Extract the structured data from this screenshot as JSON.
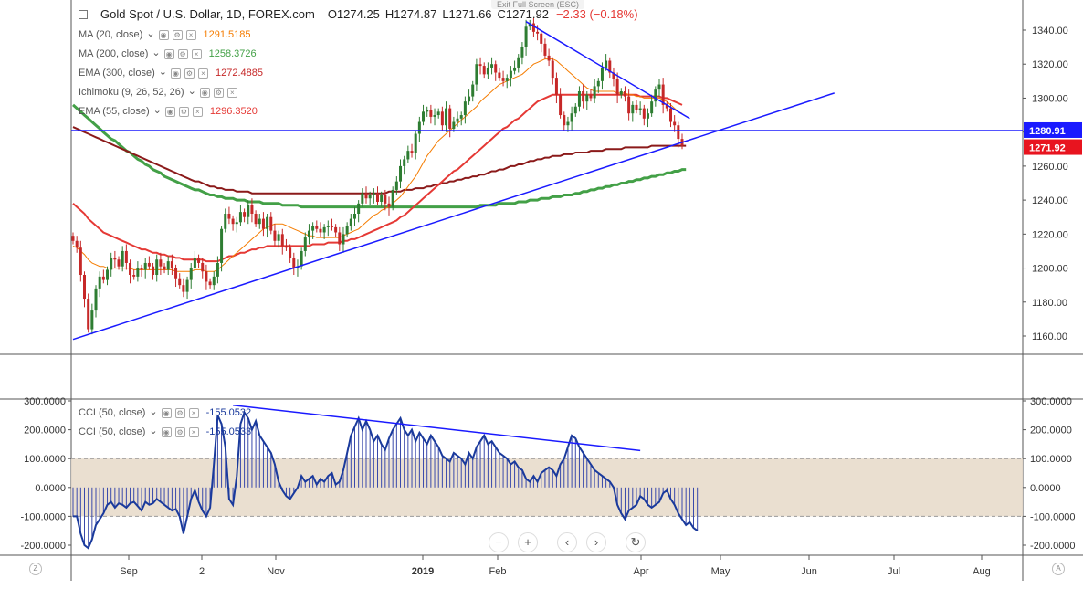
{
  "header": {
    "symbol": "Gold Spot / U.S. Dollar, 1D, FOREX.com",
    "open": "O1274.25",
    "high": "H1274.87",
    "low": "L1271.66",
    "close": "C1271.92",
    "change": "−2.33 (−0.18%)",
    "exit_fullscreen": "Exit Full Screen (ESC)"
  },
  "legend_main": [
    {
      "label": "MA (20, close)",
      "value": "1291.5185",
      "color": "#f57c00"
    },
    {
      "label": "MA (200, close)",
      "value": "1258.3726",
      "color": "#43a047"
    },
    {
      "label": "EMA (300, close)",
      "value": "1272.4885",
      "color": "#c62828"
    },
    {
      "label": "Ichimoku (9, 26, 52, 26)",
      "value": "",
      "color": "#b0b8c8"
    },
    {
      "label": "EMA (55, close)",
      "value": "1296.3520",
      "color": "#e53935"
    }
  ],
  "legend_cci": [
    {
      "label": "CCI (50, close)",
      "value": "-155.0532",
      "color": "#1a3a9c"
    },
    {
      "label": "CCI (50, close)",
      "value": "-155.0533",
      "color": "#1a3a9c"
    }
  ],
  "price_badges": {
    "hline": "1280.91",
    "last": "1271.92",
    "hline_color": "#1a1aff",
    "last_color": "#e8141f"
  },
  "chart_data": {
    "type": "candlestick",
    "price_axis": {
      "ticks": [
        1160,
        1180,
        1200,
        1220,
        1240,
        1260,
        1280,
        1300,
        1320,
        1340
      ],
      "ylim": [
        1150,
        1350
      ]
    },
    "cci_axis": {
      "ticks": [
        -200,
        -100,
        0,
        100,
        200,
        300
      ],
      "ylim": [
        -230,
        310
      ],
      "band": [
        -100,
        100
      ]
    },
    "x_labels": [
      "Sep",
      "2",
      "Nov",
      "2019",
      "Feb",
      "Apr",
      "May",
      "Jun",
      "Jul",
      "Aug"
    ],
    "close": [
      1216,
      1212,
      1196,
      1182,
      1164,
      1175,
      1188,
      1195,
      1193,
      1199,
      1206,
      1205,
      1201,
      1210,
      1203,
      1196,
      1195,
      1200,
      1199,
      1203,
      1201,
      1196,
      1205,
      1201,
      1199,
      1204,
      1200,
      1194,
      1190,
      1186,
      1193,
      1200,
      1206,
      1203,
      1198,
      1192,
      1190,
      1195,
      1203,
      1223,
      1232,
      1229,
      1226,
      1227,
      1233,
      1230,
      1237,
      1232,
      1226,
      1229,
      1223,
      1230,
      1222,
      1216,
      1220,
      1213,
      1212,
      1206,
      1200,
      1201,
      1210,
      1218,
      1222,
      1225,
      1223,
      1221,
      1224,
      1225,
      1224,
      1221,
      1214,
      1220,
      1225,
      1229,
      1232,
      1238,
      1244,
      1241,
      1243,
      1244,
      1239,
      1243,
      1238,
      1236,
      1246,
      1251,
      1260,
      1264,
      1269,
      1268,
      1279,
      1286,
      1292,
      1293,
      1289,
      1290,
      1292,
      1284,
      1294,
      1282,
      1286,
      1288,
      1290,
      1298,
      1301,
      1308,
      1320,
      1319,
      1314,
      1318,
      1320,
      1315,
      1312,
      1310,
      1312,
      1316,
      1318,
      1324,
      1330,
      1342,
      1344,
      1339,
      1338,
      1332,
      1325,
      1322,
      1312,
      1302,
      1290,
      1284,
      1286,
      1291,
      1295,
      1304,
      1298,
      1302,
      1300,
      1307,
      1310,
      1318,
      1322,
      1315,
      1311,
      1302,
      1304,
      1301,
      1291,
      1296,
      1293,
      1294,
      1288,
      1291,
      1298,
      1305,
      1308,
      1296,
      1294,
      1286,
      1284,
      1276,
      1272
    ],
    "ma20": [
      1213,
      1212,
      1210,
      1208,
      1205,
      1203,
      1202,
      1201,
      1201,
      1200,
      1200,
      1200,
      1200,
      1200,
      1200,
      1200,
      1199,
      1199,
      1199,
      1199,
      1199,
      1199,
      1199,
      1199,
      1199,
      1199,
      1199,
      1198,
      1198,
      1198,
      1198,
      1198,
      1199,
      1199,
      1199,
      1198,
      1198,
      1198,
      1199,
      1201,
      1203,
      1205,
      1207,
      1209,
      1211,
      1213,
      1215,
      1217,
      1219,
      1221,
      1223,
      1224,
      1225,
      1226,
      1226,
      1226,
      1225,
      1224,
      1223,
      1222,
      1221,
      1220,
      1219,
      1219,
      1218,
      1218,
      1218,
      1218,
      1218,
      1218,
      1218,
      1219,
      1220,
      1221,
      1222,
      1223,
      1225,
      1227,
      1229,
      1231,
      1232,
      1234,
      1235,
      1236,
      1238,
      1240,
      1242,
      1245,
      1248,
      1251,
      1254,
      1258,
      1262,
      1266,
      1269,
      1272,
      1275,
      1277,
      1279,
      1281,
      1283,
      1285,
      1287,
      1289,
      1291,
      1293,
      1295,
      1298,
      1300,
      1302,
      1304,
      1306,
      1308,
      1309,
      1310,
      1311,
      1312,
      1313,
      1314,
      1316,
      1318,
      1320,
      1321,
      1322,
      1323,
      1323,
      1323,
      1322,
      1320,
      1318,
      1316,
      1314,
      1312,
      1310,
      1308,
      1306,
      1305,
      1304,
      1304,
      1304,
      1304,
      1304,
      1304,
      1303,
      1303,
      1303,
      1302,
      1302,
      1301,
      1301,
      1300,
      1300,
      1300,
      1300,
      1300,
      1299,
      1298,
      1296,
      1294,
      1292,
      1291
    ],
    "ma200": [
      1296,
      1294,
      1292,
      1290,
      1288,
      1286,
      1284,
      1282,
      1280,
      1278,
      1276,
      1275,
      1273,
      1271,
      1269,
      1268,
      1266,
      1264,
      1263,
      1261,
      1260,
      1258,
      1257,
      1256,
      1254,
      1253,
      1252,
      1251,
      1250,
      1249,
      1248,
      1247,
      1246,
      1246,
      1245,
      1244,
      1243,
      1243,
      1242,
      1242,
      1241,
      1241,
      1241,
      1240,
      1240,
      1240,
      1239,
      1239,
      1239,
      1239,
      1238,
      1238,
      1238,
      1238,
      1238,
      1237,
      1237,
      1237,
      1237,
      1237,
      1236,
      1236,
      1236,
      1236,
      1236,
      1236,
      1236,
      1236,
      1236,
      1236,
      1236,
      1236,
      1236,
      1236,
      1236,
      1236,
      1236,
      1236,
      1236,
      1236,
      1236,
      1236,
      1236,
      1236,
      1236,
      1236,
      1236,
      1236,
      1236,
      1236,
      1236,
      1236,
      1236,
      1236,
      1236,
      1236,
      1236,
      1236,
      1236,
      1236,
      1236,
      1236,
      1236,
      1236,
      1236,
      1236,
      1236,
      1237,
      1237,
      1237,
      1237,
      1237,
      1238,
      1238,
      1238,
      1238,
      1238,
      1239,
      1239,
      1239,
      1240,
      1240,
      1240,
      1241,
      1241,
      1241,
      1242,
      1242,
      1242,
      1243,
      1243,
      1243,
      1244,
      1244,
      1245,
      1245,
      1246,
      1246,
      1247,
      1247,
      1248,
      1248,
      1249,
      1249,
      1250,
      1250,
      1251,
      1251,
      1252,
      1252,
      1253,
      1253,
      1254,
      1254,
      1255,
      1255,
      1256,
      1256,
      1257,
      1257,
      1258,
      1258
    ],
    "ema300": [
      1283,
      1282,
      1281,
      1280,
      1279,
      1278,
      1277,
      1276,
      1275,
      1274,
      1273,
      1272,
      1271,
      1270,
      1269,
      1268,
      1267,
      1266,
      1265,
      1264,
      1263,
      1262,
      1261,
      1260,
      1259,
      1258,
      1257,
      1256,
      1255,
      1254,
      1253,
      1252,
      1251,
      1251,
      1250,
      1249,
      1248,
      1248,
      1247,
      1247,
      1246,
      1246,
      1246,
      1245,
      1245,
      1245,
      1245,
      1244,
      1244,
      1244,
      1244,
      1244,
      1244,
      1244,
      1244,
      1244,
      1244,
      1244,
      1244,
      1244,
      1244,
      1244,
      1244,
      1244,
      1244,
      1244,
      1244,
      1244,
      1244,
      1244,
      1244,
      1244,
      1244,
      1244,
      1244,
      1244,
      1244,
      1244,
      1244,
      1244,
      1244,
      1244,
      1244,
      1245,
      1245,
      1245,
      1245,
      1246,
      1246,
      1246,
      1247,
      1247,
      1247,
      1248,
      1248,
      1249,
      1249,
      1250,
      1250,
      1251,
      1251,
      1252,
      1252,
      1253,
      1253,
      1254,
      1254,
      1255,
      1255,
      1256,
      1257,
      1257,
      1258,
      1258,
      1259,
      1260,
      1260,
      1261,
      1261,
      1262,
      1263,
      1263,
      1264,
      1264,
      1265,
      1265,
      1266,
      1266,
      1266,
      1267,
      1267,
      1267,
      1268,
      1268,
      1268,
      1268,
      1269,
      1269,
      1269,
      1269,
      1270,
      1270,
      1270,
      1270,
      1270,
      1271,
      1271,
      1271,
      1271,
      1271,
      1271,
      1271,
      1272,
      1272,
      1272,
      1272,
      1272,
      1272,
      1272,
      1272,
      1272,
      1272
    ],
    "ema55": [
      1238,
      1236,
      1234,
      1232,
      1229,
      1227,
      1225,
      1223,
      1221,
      1220,
      1219,
      1218,
      1217,
      1216,
      1215,
      1214,
      1213,
      1212,
      1211,
      1211,
      1210,
      1209,
      1209,
      1208,
      1208,
      1207,
      1207,
      1206,
      1206,
      1205,
      1205,
      1205,
      1205,
      1205,
      1205,
      1204,
      1204,
      1204,
      1204,
      1205,
      1206,
      1207,
      1207,
      1208,
      1209,
      1209,
      1210,
      1211,
      1211,
      1212,
      1212,
      1213,
      1213,
      1213,
      1213,
      1213,
      1213,
      1213,
      1213,
      1213,
      1213,
      1213,
      1213,
      1214,
      1214,
      1214,
      1214,
      1215,
      1215,
      1215,
      1215,
      1216,
      1216,
      1217,
      1217,
      1218,
      1219,
      1220,
      1221,
      1222,
      1223,
      1224,
      1225,
      1226,
      1227,
      1228,
      1230,
      1231,
      1233,
      1235,
      1237,
      1239,
      1241,
      1243,
      1245,
      1247,
      1249,
      1251,
      1253,
      1255,
      1257,
      1258,
      1260,
      1262,
      1264,
      1266,
      1268,
      1270,
      1272,
      1274,
      1276,
      1278,
      1280,
      1282,
      1283,
      1285,
      1287,
      1288,
      1290,
      1292,
      1294,
      1296,
      1298,
      1299,
      1300,
      1301,
      1302,
      1302,
      1302,
      1302,
      1302,
      1302,
      1302,
      1302,
      1302,
      1302,
      1302,
      1302,
      1302,
      1302,
      1302,
      1302,
      1302,
      1302,
      1302,
      1302,
      1302,
      1302,
      1302,
      1301,
      1301,
      1301,
      1301,
      1301,
      1301,
      1300,
      1300,
      1299,
      1298,
      1297,
      1296
    ],
    "cci": [
      -100,
      -100,
      -160,
      -200,
      -210,
      -180,
      -130,
      -110,
      -90,
      -60,
      -50,
      -70,
      -55,
      -60,
      -70,
      -55,
      -50,
      -65,
      -80,
      -50,
      -60,
      -55,
      -40,
      -50,
      -60,
      -70,
      -80,
      -75,
      -100,
      -160,
      -100,
      -40,
      -10,
      -50,
      -80,
      -100,
      -70,
      80,
      250,
      220,
      140,
      -40,
      -60,
      40,
      220,
      260,
      240,
      200,
      230,
      180,
      160,
      140,
      120,
      80,
      20,
      -10,
      -30,
      -40,
      -20,
      0,
      40,
      20,
      30,
      40,
      10,
      30,
      20,
      40,
      50,
      10,
      20,
      60,
      120,
      180,
      210,
      240,
      200,
      230,
      200,
      160,
      180,
      150,
      130,
      170,
      200,
      220,
      240,
      200,
      180,
      200,
      160,
      190,
      170,
      150,
      180,
      160,
      140,
      110,
      100,
      90,
      120,
      110,
      100,
      80,
      120,
      100,
      140,
      160,
      180,
      150,
      160,
      140,
      120,
      110,
      100,
      80,
      90,
      70,
      60,
      30,
      20,
      40,
      20,
      50,
      60,
      70,
      60,
      40,
      80,
      100,
      140,
      180,
      170,
      140,
      120,
      100,
      80,
      60,
      50,
      40,
      30,
      20,
      0,
      -60,
      -90,
      -110,
      -80,
      -70,
      -60,
      -30,
      -40,
      -60,
      -70,
      -60,
      -50,
      -20,
      -10,
      -40,
      -60,
      -90,
      -110,
      -130,
      -120,
      -140,
      -150
    ],
    "trendlines": {
      "support": [
        [
          0,
          1158
        ],
        [
          200,
          1303
        ]
      ],
      "resistance": [
        [
          119,
          1345
        ],
        [
          162,
          1288
        ]
      ],
      "horizontal": 1280.91,
      "cci_divergence": [
        [
          42,
          285
        ],
        [
          149,
          128
        ]
      ]
    }
  }
}
